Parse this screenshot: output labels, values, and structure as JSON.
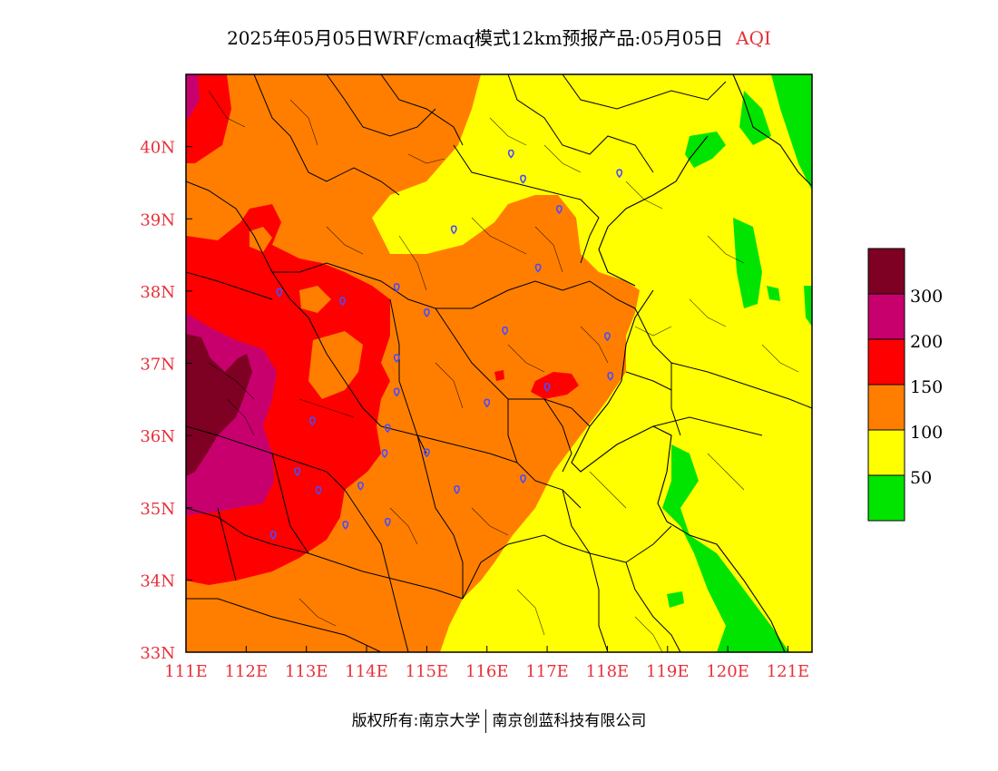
{
  "title": {
    "main": "2025年05月05日WRF/cmaq模式12km预报产品:05月05日",
    "variable": "AQI"
  },
  "chart_data": {
    "type": "heatmap",
    "map_extent": {
      "lon": [
        111,
        121.4
      ],
      "lat": [
        33,
        41
      ]
    },
    "x_ticks": [
      "111E",
      "112E",
      "113E",
      "114E",
      "115E",
      "116E",
      "117E",
      "118E",
      "119E",
      "120E",
      "121E"
    ],
    "y_ticks": [
      "33N",
      "34N",
      "35N",
      "36N",
      "37N",
      "38N",
      "39N",
      "40N"
    ],
    "legend": {
      "labels": [
        "50",
        "100",
        "150",
        "200",
        "300"
      ],
      "colors": [
        "#00e400",
        "#ffff00",
        "#ff7e00",
        "#ff0000",
        "#c8006e",
        "#7e0023"
      ]
    },
    "colors": {
      "good": "#00e400",
      "moderate": "#ffff00",
      "sensitive": "#ff7e00",
      "unhealthy": "#ff0000",
      "very_unhealthy": "#c8006e",
      "hazardous": "#7e0023",
      "city_marker": "#4a4cff",
      "tick_color": "#e8303a"
    },
    "city_markers": [
      {
        "lon": 116.4,
        "lat": 39.9
      },
      {
        "lon": 116.6,
        "lat": 39.55
      },
      {
        "lon": 117.2,
        "lat": 39.13
      },
      {
        "lon": 118.2,
        "lat": 39.63
      },
      {
        "lon": 115.45,
        "lat": 38.85
      },
      {
        "lon": 116.85,
        "lat": 38.32
      },
      {
        "lon": 114.5,
        "lat": 38.05
      },
      {
        "lon": 112.55,
        "lat": 37.98
      },
      {
        "lon": 113.6,
        "lat": 37.86
      },
      {
        "lon": 115.0,
        "lat": 37.7
      },
      {
        "lon": 116.3,
        "lat": 37.45
      },
      {
        "lon": 118.0,
        "lat": 37.37
      },
      {
        "lon": 114.5,
        "lat": 37.07
      },
      {
        "lon": 118.05,
        "lat": 36.82
      },
      {
        "lon": 117.0,
        "lat": 36.67
      },
      {
        "lon": 114.5,
        "lat": 36.6
      },
      {
        "lon": 116.0,
        "lat": 36.45
      },
      {
        "lon": 113.1,
        "lat": 36.2
      },
      {
        "lon": 114.35,
        "lat": 36.1
      },
      {
        "lon": 114.3,
        "lat": 35.75
      },
      {
        "lon": 115.0,
        "lat": 35.76
      },
      {
        "lon": 112.85,
        "lat": 35.5
      },
      {
        "lon": 116.6,
        "lat": 35.4
      },
      {
        "lon": 113.9,
        "lat": 35.3
      },
      {
        "lon": 115.5,
        "lat": 35.25
      },
      {
        "lon": 113.2,
        "lat": 35.24
      },
      {
        "lon": 114.35,
        "lat": 34.8
      },
      {
        "lon": 113.65,
        "lat": 34.76
      },
      {
        "lon": 112.45,
        "lat": 34.62
      }
    ]
  },
  "copyright": {
    "left": "版权所有:南京大学",
    "right": "南京创蓝科技有限公司"
  }
}
